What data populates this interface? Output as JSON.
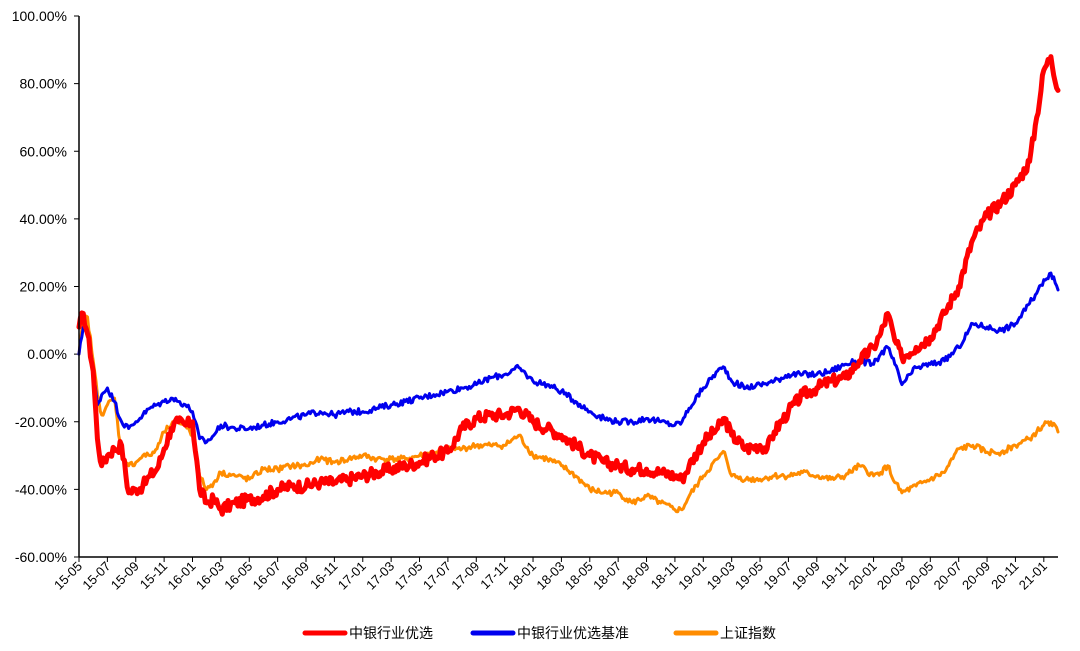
{
  "chart_data": {
    "type": "line",
    "y_tick_labels": [
      "100.00%",
      "80.00%",
      "60.00%",
      "40.00%",
      "20.00%",
      "0.00%",
      "-20.00%",
      "-40.00%",
      "-60.00%"
    ],
    "y_tick_values": [
      100,
      80,
      60,
      40,
      20,
      0,
      -20,
      -40,
      -60
    ],
    "ylim": [
      -60,
      100
    ],
    "x_tick_labels": [
      "15-05",
      "15-07",
      "15-09",
      "15-11",
      "16-01",
      "16-03",
      "16-05",
      "16-07",
      "16-09",
      "16-11",
      "17-01",
      "17-03",
      "17-05",
      "17-07",
      "17-09",
      "17-11",
      "18-01",
      "18-03",
      "18-05",
      "18-07",
      "18-09",
      "18-11",
      "19-01",
      "19-03",
      "19-05",
      "19-07",
      "19-09",
      "19-11",
      "20-01",
      "20-03",
      "20-05",
      "20-07",
      "20-09",
      "20-11",
      "21-01"
    ],
    "x_range_months": [
      0,
      69
    ],
    "legend_position": "bottom",
    "grid": false,
    "series": [
      {
        "name": "中银行业优选",
        "color": "#ff0000",
        "points": [
          [
            0,
            8
          ],
          [
            0.3,
            12
          ],
          [
            0.6,
            6
          ],
          [
            1,
            -5
          ],
          [
            1.3,
            -25
          ],
          [
            1.6,
            -33
          ],
          [
            2,
            -30
          ],
          [
            2.5,
            -28
          ],
          [
            3,
            -27
          ],
          [
            3.5,
            -41
          ],
          [
            4,
            -40
          ],
          [
            4.5,
            -39
          ],
          [
            5,
            -36
          ],
          [
            5.5,
            -34
          ],
          [
            6,
            -28
          ],
          [
            6.5,
            -22
          ],
          [
            7,
            -20
          ],
          [
            7.5,
            -21
          ],
          [
            8,
            -20
          ],
          [
            8.5,
            -40
          ],
          [
            9,
            -44
          ],
          [
            9.5,
            -43
          ],
          [
            10,
            -46
          ],
          [
            11,
            -44
          ],
          [
            12,
            -43
          ],
          [
            13,
            -42
          ],
          [
            14,
            -40
          ],
          [
            15,
            -39
          ],
          [
            16,
            -39
          ],
          [
            17,
            -38
          ],
          [
            18,
            -38
          ],
          [
            19,
            -37
          ],
          [
            20,
            -36
          ],
          [
            21,
            -35
          ],
          [
            22,
            -34
          ],
          [
            23,
            -33
          ],
          [
            24,
            -32
          ],
          [
            25,
            -30
          ],
          [
            26,
            -29
          ],
          [
            27,
            -22
          ],
          [
            28,
            -19
          ],
          [
            29,
            -18
          ],
          [
            30,
            -18
          ],
          [
            31,
            -16
          ],
          [
            32,
            -20
          ],
          [
            33,
            -22
          ],
          [
            34,
            -24
          ],
          [
            35,
            -27
          ],
          [
            36,
            -30
          ],
          [
            37,
            -32
          ],
          [
            38,
            -33
          ],
          [
            39,
            -34
          ],
          [
            40,
            -34
          ],
          [
            41,
            -35
          ],
          [
            42,
            -36
          ],
          [
            42.5,
            -37
          ],
          [
            43,
            -33
          ],
          [
            44,
            -26
          ],
          [
            45,
            -22
          ],
          [
            45.5,
            -19
          ],
          [
            46,
            -24
          ],
          [
            47,
            -28
          ],
          [
            48,
            -27
          ],
          [
            48.5,
            -28
          ],
          [
            49,
            -23
          ],
          [
            50,
            -17
          ],
          [
            51,
            -12
          ],
          [
            52,
            -10
          ],
          [
            53,
            -8
          ],
          [
            54,
            -7
          ],
          [
            55,
            -2
          ],
          [
            56,
            2
          ],
          [
            56.5,
            6
          ],
          [
            57,
            12
          ],
          [
            57.5,
            4
          ],
          [
            58,
            -1
          ],
          [
            59,
            2
          ],
          [
            60,
            5
          ],
          [
            61,
            12
          ],
          [
            62,
            20
          ],
          [
            63,
            34
          ],
          [
            64,
            41
          ],
          [
            65,
            45
          ],
          [
            66,
            50
          ],
          [
            67,
            57
          ],
          [
            67.5,
            70
          ],
          [
            68,
            84
          ],
          [
            68.5,
            88
          ],
          [
            69,
            78
          ]
        ]
      },
      {
        "name": "中银行业优选基准",
        "color": "#0000ee",
        "points": [
          [
            0,
            0
          ],
          [
            0.3,
            8
          ],
          [
            0.6,
            7
          ],
          [
            1,
            -5
          ],
          [
            1.3,
            -15
          ],
          [
            1.6,
            -12
          ],
          [
            2,
            -10
          ],
          [
            2.5,
            -14
          ],
          [
            3,
            -20
          ],
          [
            3.5,
            -22
          ],
          [
            4,
            -20
          ],
          [
            4.5,
            -18
          ],
          [
            5,
            -16
          ],
          [
            5.5,
            -15
          ],
          [
            6,
            -14
          ],
          [
            6.5,
            -13
          ],
          [
            7,
            -14
          ],
          [
            7.5,
            -15
          ],
          [
            8,
            -17
          ],
          [
            8.5,
            -25
          ],
          [
            9,
            -26
          ],
          [
            9.5,
            -24
          ],
          [
            10,
            -21
          ],
          [
            11,
            -22
          ],
          [
            12,
            -22
          ],
          [
            13,
            -21
          ],
          [
            14,
            -20
          ],
          [
            15,
            -19
          ],
          [
            16,
            -18
          ],
          [
            17,
            -17
          ],
          [
            18,
            -18
          ],
          [
            19,
            -17
          ],
          [
            20,
            -17
          ],
          [
            21,
            -16
          ],
          [
            22,
            -15
          ],
          [
            23,
            -14
          ],
          [
            24,
            -13
          ],
          [
            25,
            -12
          ],
          [
            26,
            -11
          ],
          [
            27,
            -10
          ],
          [
            28,
            -9
          ],
          [
            29,
            -7
          ],
          [
            30,
            -6
          ],
          [
            31,
            -4
          ],
          [
            32,
            -8
          ],
          [
            33,
            -9
          ],
          [
            34,
            -11
          ],
          [
            35,
            -14
          ],
          [
            36,
            -17
          ],
          [
            37,
            -19
          ],
          [
            38,
            -20
          ],
          [
            39,
            -20
          ],
          [
            40,
            -19
          ],
          [
            41,
            -20
          ],
          [
            42,
            -21
          ],
          [
            42.5,
            -20
          ],
          [
            43,
            -16
          ],
          [
            44,
            -10
          ],
          [
            45,
            -5
          ],
          [
            45.5,
            -4
          ],
          [
            46,
            -8
          ],
          [
            47,
            -10
          ],
          [
            48,
            -9
          ],
          [
            49,
            -8
          ],
          [
            50,
            -6
          ],
          [
            51,
            -6
          ],
          [
            52,
            -6
          ],
          [
            53,
            -5
          ],
          [
            54,
            -3
          ],
          [
            55,
            -2
          ],
          [
            56,
            -3
          ],
          [
            56.5,
            0
          ],
          [
            57,
            2
          ],
          [
            57.5,
            -3
          ],
          [
            58,
            -9
          ],
          [
            59,
            -4
          ],
          [
            60,
            -3
          ],
          [
            61,
            -2
          ],
          [
            62,
            2
          ],
          [
            63,
            9
          ],
          [
            64,
            8
          ],
          [
            65,
            7
          ],
          [
            66,
            9
          ],
          [
            67,
            15
          ],
          [
            67.5,
            18
          ],
          [
            68,
            22
          ],
          [
            68.5,
            24
          ],
          [
            69,
            19
          ]
        ]
      },
      {
        "name": "上证指数",
        "color": "#ff8c00",
        "points": [
          [
            0,
            0
          ],
          [
            0.3,
            10
          ],
          [
            0.6,
            11
          ],
          [
            1,
            -2
          ],
          [
            1.3,
            -12
          ],
          [
            1.6,
            -18
          ],
          [
            2,
            -15
          ],
          [
            2.5,
            -13
          ],
          [
            3,
            -30
          ],
          [
            3.5,
            -33
          ],
          [
            4,
            -32
          ],
          [
            4.5,
            -30
          ],
          [
            5,
            -30
          ],
          [
            5.5,
            -28
          ],
          [
            6,
            -23
          ],
          [
            6.5,
            -21
          ],
          [
            7,
            -20
          ],
          [
            7.5,
            -21
          ],
          [
            8,
            -24
          ],
          [
            8.5,
            -36
          ],
          [
            9,
            -40
          ],
          [
            9.5,
            -38
          ],
          [
            10,
            -35
          ],
          [
            11,
            -36
          ],
          [
            12,
            -37
          ],
          [
            13,
            -34
          ],
          [
            14,
            -34
          ],
          [
            15,
            -33
          ],
          [
            16,
            -33
          ],
          [
            17,
            -31
          ],
          [
            18,
            -32
          ],
          [
            19,
            -31
          ],
          [
            20,
            -30
          ],
          [
            21,
            -31
          ],
          [
            22,
            -31
          ],
          [
            23,
            -31
          ],
          [
            24,
            -30
          ],
          [
            25,
            -29
          ],
          [
            26,
            -28
          ],
          [
            27,
            -28
          ],
          [
            28,
            -27
          ],
          [
            29,
            -27
          ],
          [
            30,
            -27
          ],
          [
            31,
            -24
          ],
          [
            32,
            -30
          ],
          [
            33,
            -31
          ],
          [
            34,
            -33
          ],
          [
            35,
            -36
          ],
          [
            36,
            -40
          ],
          [
            37,
            -41
          ],
          [
            38,
            -41
          ],
          [
            39,
            -44
          ],
          [
            40,
            -42
          ],
          [
            41,
            -44
          ],
          [
            42,
            -46
          ],
          [
            42.5,
            -46
          ],
          [
            43,
            -42
          ],
          [
            44,
            -36
          ],
          [
            45,
            -31
          ],
          [
            45.5,
            -29
          ],
          [
            46,
            -36
          ],
          [
            47,
            -37
          ],
          [
            48,
            -37
          ],
          [
            49,
            -36
          ],
          [
            50,
            -36
          ],
          [
            51,
            -35
          ],
          [
            52,
            -36
          ],
          [
            53,
            -37
          ],
          [
            54,
            -36
          ],
          [
            55,
            -33
          ],
          [
            56,
            -36
          ],
          [
            56.5,
            -35
          ],
          [
            57,
            -33
          ],
          [
            57.5,
            -38
          ],
          [
            58,
            -41
          ],
          [
            59,
            -39
          ],
          [
            60,
            -37
          ],
          [
            61,
            -35
          ],
          [
            62,
            -28
          ],
          [
            63,
            -27
          ],
          [
            64,
            -29
          ],
          [
            65,
            -29
          ],
          [
            66,
            -27
          ],
          [
            67,
            -25
          ],
          [
            67.5,
            -23
          ],
          [
            68,
            -21
          ],
          [
            68.5,
            -20
          ],
          [
            69,
            -23
          ]
        ]
      }
    ]
  }
}
